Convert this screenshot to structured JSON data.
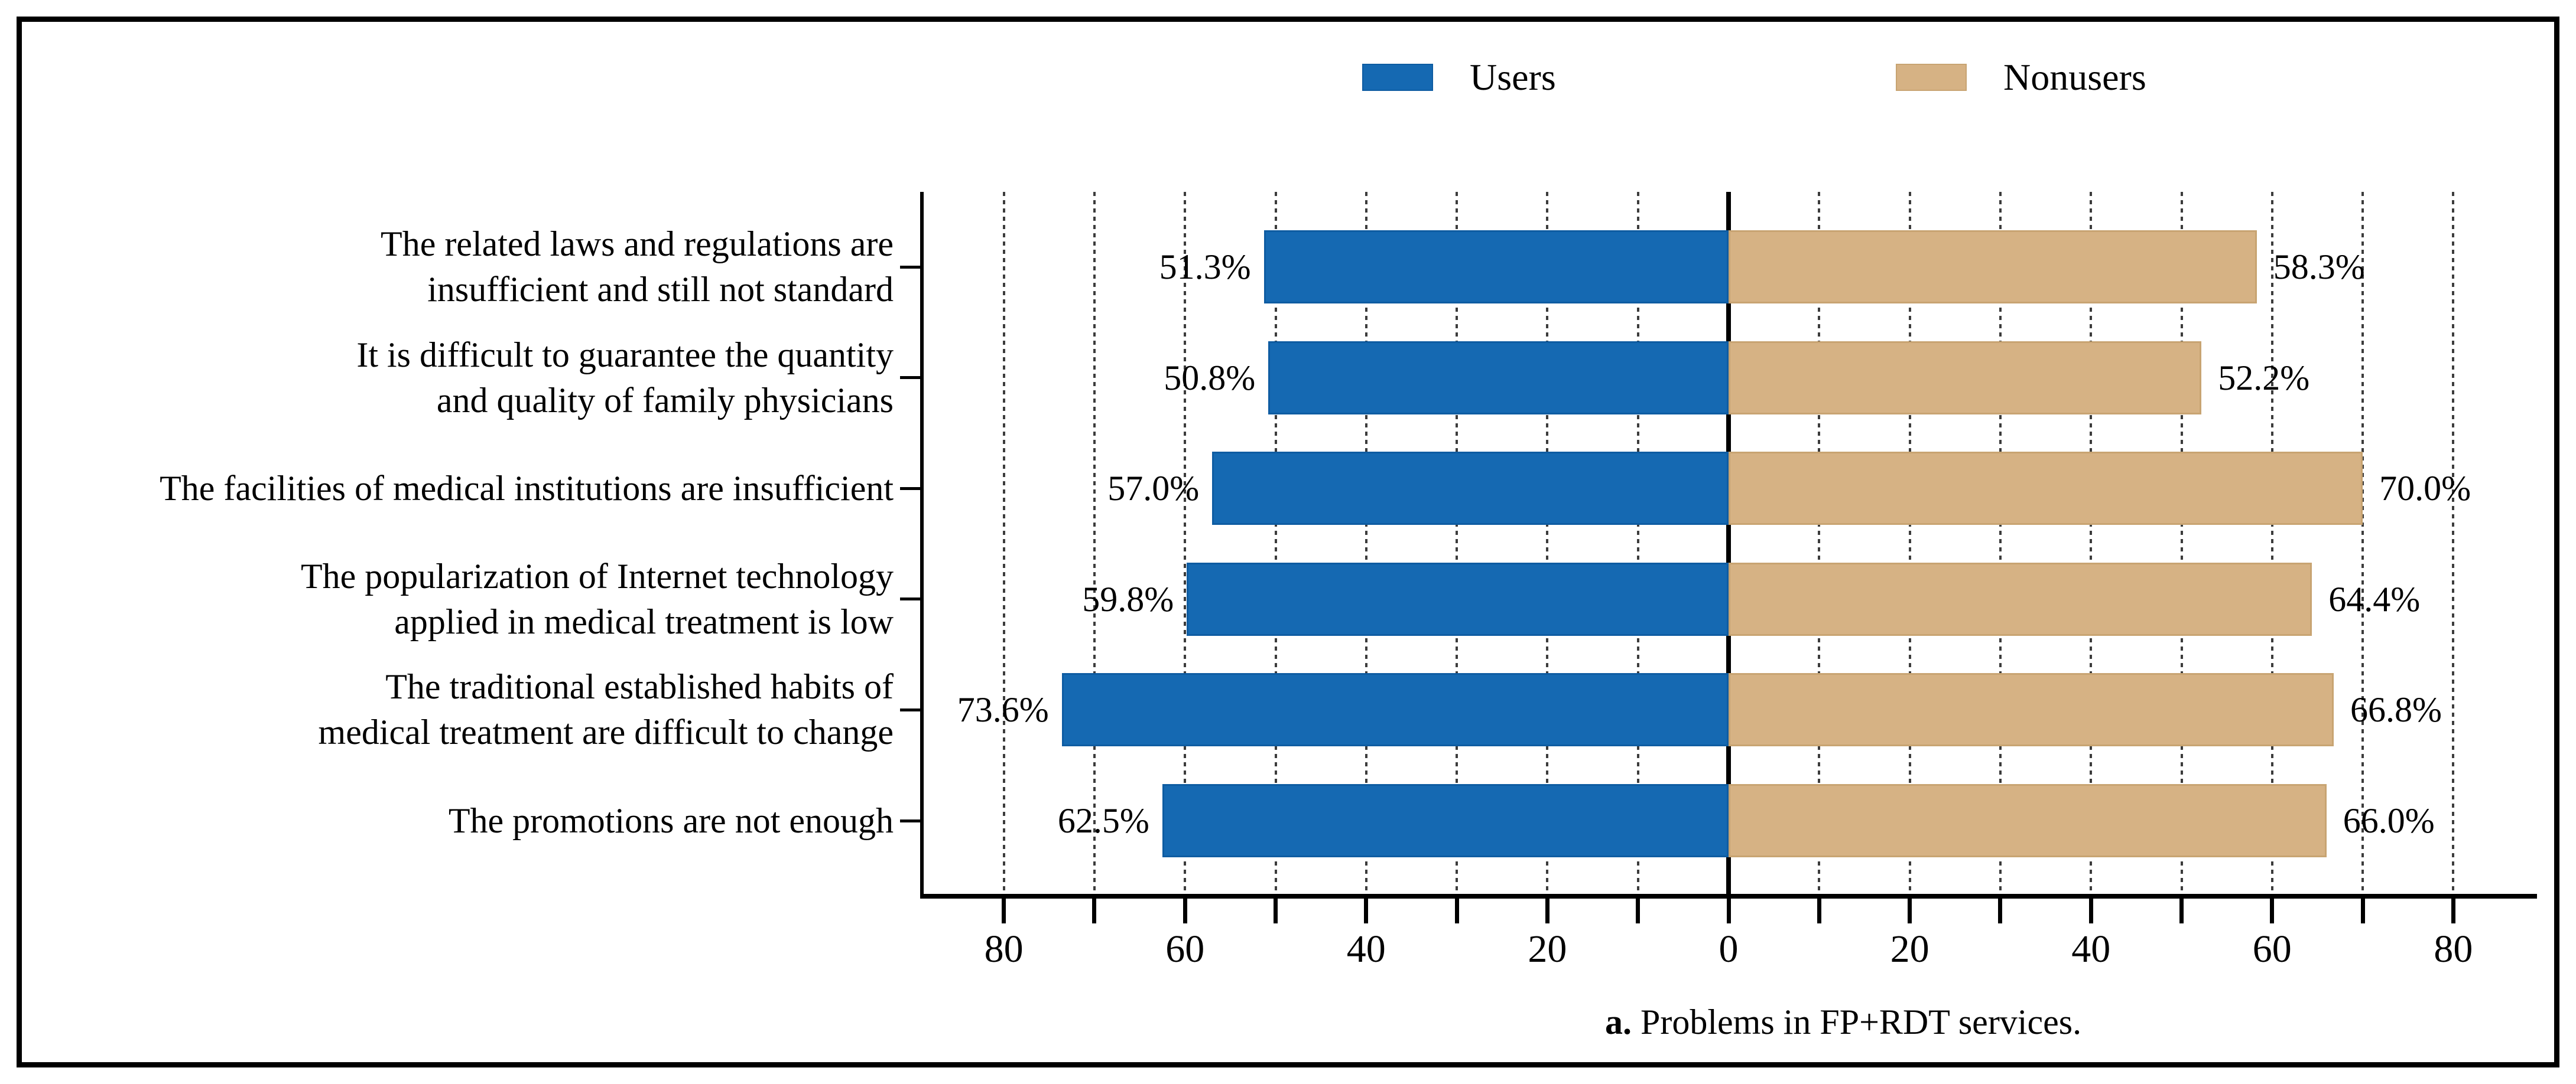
{
  "figure": {
    "panel_label": "a.",
    "caption": " Problems in FP+RDT services."
  },
  "legend": [
    {
      "label": "Users",
      "color": "#1569b2",
      "edge": "#0e5ca2"
    },
    {
      "label": "Nonusers",
      "color": "#d6b284",
      "edge": "#c8a472"
    }
  ],
  "chart_data": {
    "type": "bar",
    "variant": "diverging-horizontal",
    "unit": "%",
    "title": "",
    "caption": "a. Problems in FP+RDT services.",
    "categories": [
      "The related laws and regulations are\ninsufficient and still not standard",
      "It is difficult to guarantee the quantity\nand quality of family physicians",
      "The facilities of medical institutions are insufficient",
      "The popularization of Internet technology\napplied in medical treatment is low",
      "The traditional established habits of\nmedical treatment are difficult to change",
      "The promotions are not enough"
    ],
    "series": [
      {
        "name": "Users",
        "side": "left",
        "color": "#1569b2",
        "values": [
          51.3,
          50.8,
          57.0,
          59.8,
          73.6,
          62.5
        ]
      },
      {
        "name": "Nonusers",
        "side": "right",
        "color": "#d6b284",
        "values": [
          58.3,
          52.2,
          70.0,
          64.4,
          66.8,
          66.0
        ]
      }
    ],
    "x_axis": {
      "range": [
        -90,
        90
      ],
      "grid_step": 10,
      "tick_step": 10,
      "label_step": 20,
      "tick_labels": [
        "80",
        "60",
        "40",
        "20",
        "0",
        "20",
        "40",
        "60",
        "80"
      ],
      "grid": "dashed-vertical"
    },
    "legend_position": "top-center",
    "legend_entries": [
      "Users",
      "Nonusers"
    ]
  }
}
